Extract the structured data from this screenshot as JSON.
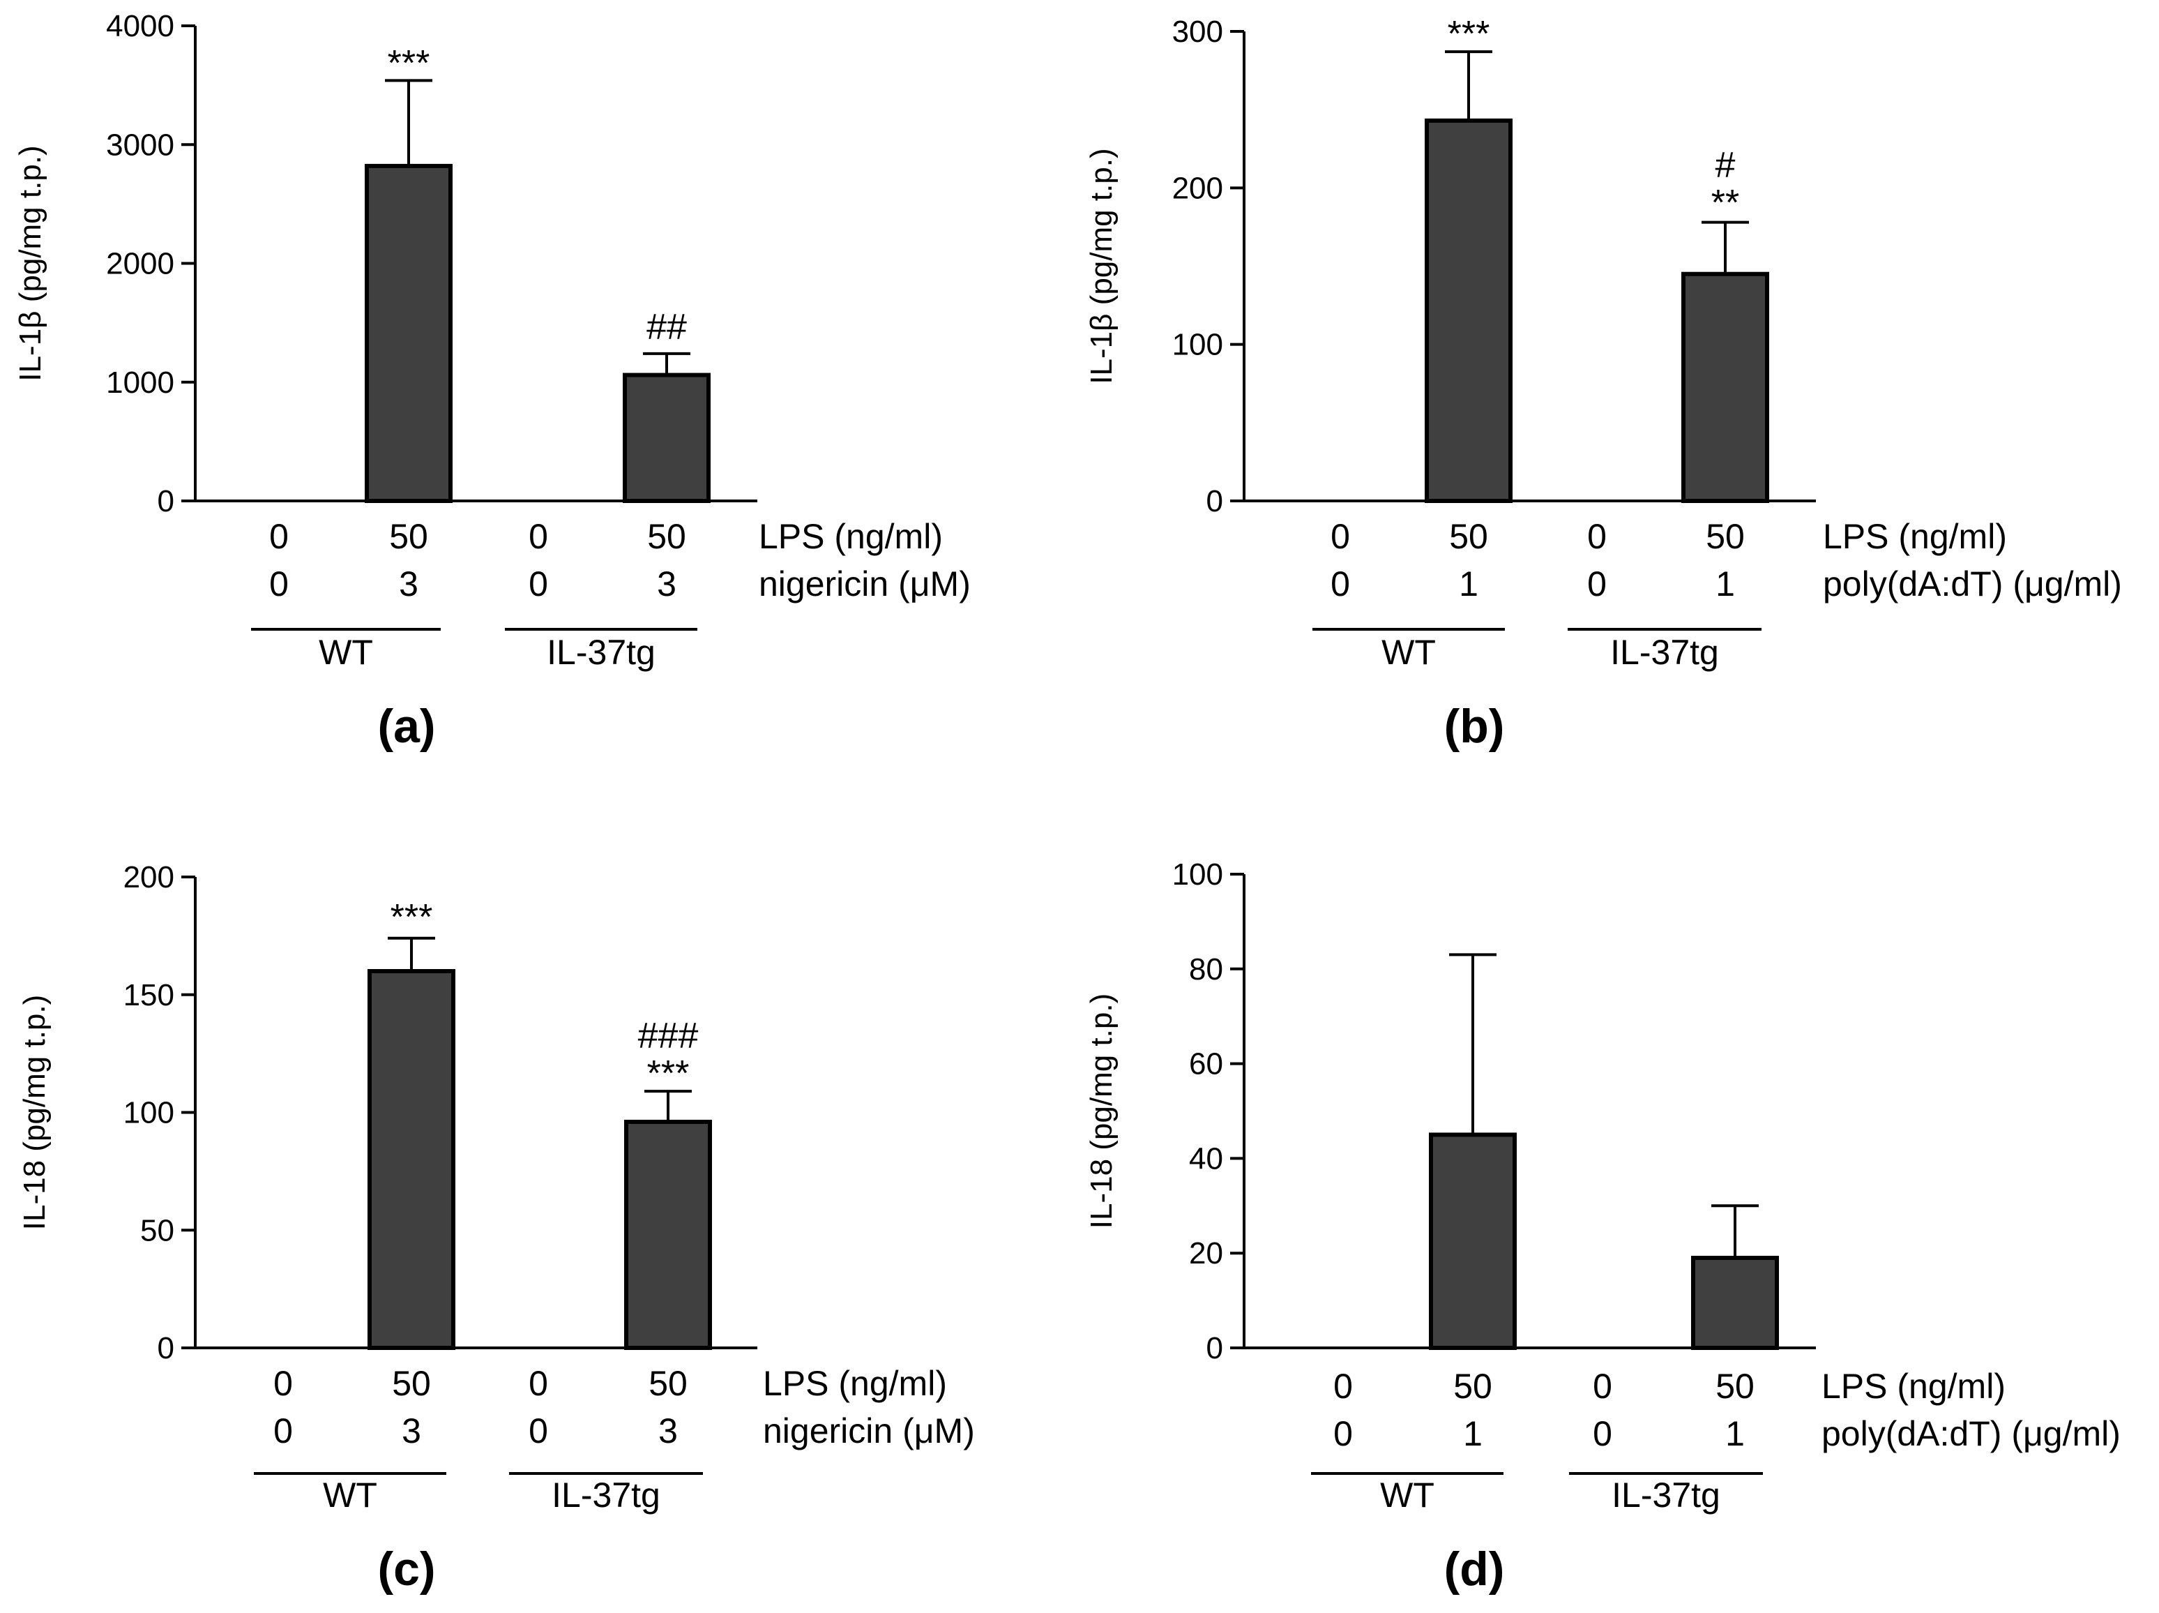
{
  "colors": {
    "bar": "#404040",
    "stroke": "#000000",
    "background": "#ffffff"
  },
  "chart_data": [
    {
      "type": "bar",
      "panel": "(a)",
      "ylabel": "IL-1β (pg/mg t.p.)",
      "ylim": [
        0,
        4000
      ],
      "yticks": [
        0,
        1000,
        2000,
        3000,
        4000
      ],
      "categories": [
        "WT 0/0",
        "WT 50/3",
        "IL-37tg 0/0",
        "IL-37tg 50/3"
      ],
      "values": [
        0,
        2820,
        0,
        1060
      ],
      "errors": [
        0,
        720,
        0,
        180
      ],
      "significance": [
        [],
        [
          "***"
        ],
        [],
        [
          "##"
        ]
      ],
      "conditions": [
        {
          "label": "LPS (ng/ml)",
          "values": [
            "0",
            "50",
            "0",
            "50"
          ]
        },
        {
          "label": "nigericin (μM)",
          "values": [
            "0",
            "3",
            "0",
            "3"
          ]
        }
      ],
      "groups": [
        "WT",
        "IL-37tg"
      ]
    },
    {
      "type": "bar",
      "panel": "(b)",
      "ylabel": "IL-1β (pg/mg t.p.)",
      "ylim": [
        0,
        300
      ],
      "yticks": [
        0,
        100,
        200,
        300
      ],
      "categories": [
        "WT 0/0",
        "WT 50/1",
        "IL-37tg 0/0",
        "IL-37tg 50/1"
      ],
      "values": [
        0,
        243,
        0,
        145
      ],
      "errors": [
        0,
        44,
        0,
        33
      ],
      "significance": [
        [],
        [
          "***"
        ],
        [],
        [
          "#",
          "**"
        ]
      ],
      "conditions": [
        {
          "label": "LPS (ng/ml)",
          "values": [
            "0",
            "50",
            "0",
            "50"
          ]
        },
        {
          "label": "poly(dA:dT) (μg/ml)",
          "values": [
            "0",
            "1",
            "0",
            "1"
          ]
        }
      ],
      "groups": [
        "WT",
        "IL-37tg"
      ]
    },
    {
      "type": "bar",
      "panel": "(c)",
      "ylabel": "IL-18 (pg/mg t.p.)",
      "ylim": [
        0,
        200
      ],
      "yticks": [
        0,
        50,
        100,
        150,
        200
      ],
      "categories": [
        "WT 0/0",
        "WT 50/3",
        "IL-37tg 0/0",
        "IL-37tg 50/3"
      ],
      "values": [
        0,
        160,
        0,
        96
      ],
      "errors": [
        0,
        14,
        0,
        13
      ],
      "significance": [
        [],
        [
          "***"
        ],
        [],
        [
          "###",
          "***"
        ]
      ],
      "conditions": [
        {
          "label": "LPS (ng/ml)",
          "values": [
            "0",
            "50",
            "0",
            "50"
          ]
        },
        {
          "label": "nigericin (μM)",
          "values": [
            "0",
            "3",
            "0",
            "3"
          ]
        }
      ],
      "groups": [
        "WT",
        "IL-37tg"
      ]
    },
    {
      "type": "bar",
      "panel": "(d)",
      "ylabel": "IL-18 (pg/mg t.p.)",
      "ylim": [
        0,
        100
      ],
      "yticks": [
        0,
        20,
        40,
        60,
        80,
        100
      ],
      "categories": [
        "WT 0/0",
        "WT 50/1",
        "IL-37tg 0/0",
        "IL-37tg 50/1"
      ],
      "values": [
        0,
        45,
        0,
        19
      ],
      "errors": [
        0,
        38,
        0,
        11
      ],
      "significance": [
        [],
        [],
        [],
        []
      ],
      "conditions": [
        {
          "label": "LPS (ng/ml)",
          "values": [
            "0",
            "50",
            "0",
            "50"
          ]
        },
        {
          "label": "poly(dA:dT) (μg/ml)",
          "values": [
            "0",
            "1",
            "0",
            "1"
          ]
        }
      ],
      "groups": [
        "WT",
        "IL-37tg"
      ]
    }
  ]
}
